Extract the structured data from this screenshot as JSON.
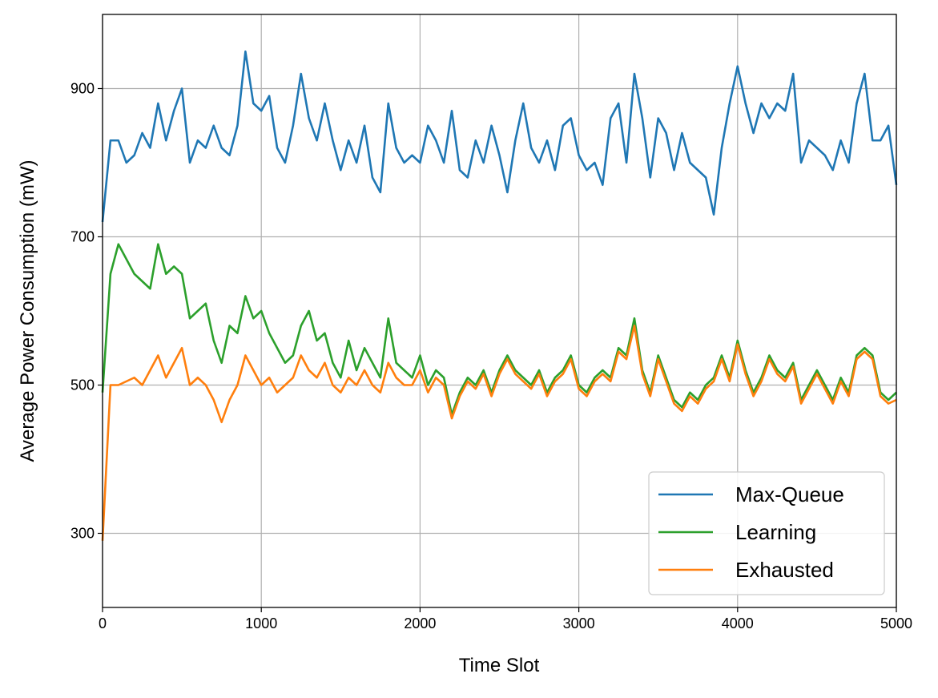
{
  "chart_data": {
    "type": "line",
    "xlabel": "Time Slot",
    "ylabel": "Average Power Consumption (mW)",
    "x": [
      0,
      50,
      100,
      150,
      200,
      250,
      300,
      350,
      400,
      450,
      500,
      550,
      600,
      650,
      700,
      750,
      800,
      850,
      900,
      950,
      1000,
      1050,
      1100,
      1150,
      1200,
      1250,
      1300,
      1350,
      1400,
      1450,
      1500,
      1550,
      1600,
      1650,
      1700,
      1750,
      1800,
      1850,
      1900,
      1950,
      2000,
      2050,
      2100,
      2150,
      2200,
      2250,
      2300,
      2350,
      2400,
      2450,
      2500,
      2550,
      2600,
      2650,
      2700,
      2750,
      2800,
      2850,
      2900,
      2950,
      3000,
      3050,
      3100,
      3150,
      3200,
      3250,
      3300,
      3350,
      3400,
      3450,
      3500,
      3550,
      3600,
      3650,
      3700,
      3750,
      3800,
      3850,
      3900,
      3950,
      4000,
      4050,
      4100,
      4150,
      4200,
      4250,
      4300,
      4350,
      4400,
      4450,
      4500,
      4550,
      4600,
      4650,
      4700,
      4750,
      4800,
      4850,
      4900,
      4950,
      5000
    ],
    "series": [
      {
        "name": "Max-Queue",
        "color": "#1f77b4",
        "values": [
          720,
          830,
          830,
          800,
          810,
          840,
          820,
          880,
          830,
          870,
          900,
          800,
          830,
          820,
          850,
          820,
          810,
          850,
          950,
          880,
          870,
          890,
          820,
          800,
          850,
          920,
          860,
          830,
          880,
          830,
          790,
          830,
          800,
          850,
          780,
          760,
          880,
          820,
          800,
          810,
          800,
          850,
          830,
          800,
          870,
          790,
          780,
          830,
          800,
          850,
          810,
          760,
          830,
          880,
          820,
          800,
          830,
          790,
          850,
          860,
          810,
          790,
          800,
          770,
          860,
          880,
          800,
          920,
          860,
          780,
          860,
          840,
          790,
          840,
          800,
          790,
          780,
          730,
          820,
          880,
          930,
          880,
          840,
          880,
          860,
          880,
          870,
          920,
          800,
          830,
          820,
          810,
          790,
          830,
          800,
          880,
          920,
          830,
          830,
          850,
          770
        ]
      },
      {
        "name": "Learning",
        "color": "#2ca02c",
        "values": [
          490,
          650,
          690,
          670,
          650,
          640,
          630,
          690,
          650,
          660,
          650,
          590,
          600,
          610,
          560,
          530,
          580,
          570,
          620,
          590,
          600,
          570,
          550,
          530,
          540,
          580,
          600,
          560,
          570,
          530,
          510,
          560,
          520,
          550,
          530,
          510,
          590,
          530,
          520,
          510,
          540,
          500,
          520,
          510,
          460,
          490,
          510,
          500,
          520,
          490,
          520,
          540,
          520,
          510,
          500,
          520,
          490,
          510,
          520,
          540,
          500,
          490,
          510,
          520,
          510,
          550,
          540,
          590,
          520,
          490,
          540,
          510,
          480,
          470,
          490,
          480,
          500,
          510,
          540,
          510,
          560,
          520,
          490,
          510,
          540,
          520,
          510,
          530,
          480,
          500,
          520,
          500,
          480,
          510,
          490,
          540,
          550,
          540,
          490,
          480,
          490
        ]
      },
      {
        "name": "Exhausted",
        "color": "#ff7f0e",
        "values": [
          290,
          500,
          500,
          505,
          510,
          500,
          520,
          540,
          510,
          530,
          550,
          500,
          510,
          500,
          480,
          450,
          480,
          500,
          540,
          520,
          500,
          510,
          490,
          500,
          510,
          540,
          520,
          510,
          530,
          500,
          490,
          510,
          500,
          520,
          500,
          490,
          530,
          510,
          500,
          500,
          520,
          490,
          510,
          500,
          455,
          485,
          505,
          495,
          515,
          485,
          515,
          535,
          515,
          505,
          495,
          515,
          485,
          505,
          515,
          535,
          495,
          485,
          505,
          515,
          505,
          545,
          535,
          580,
          515,
          485,
          535,
          505,
          475,
          465,
          485,
          475,
          495,
          505,
          535,
          505,
          555,
          515,
          485,
          505,
          535,
          515,
          505,
          525,
          475,
          495,
          515,
          495,
          475,
          505,
          485,
          535,
          545,
          535,
          485,
          475,
          480
        ]
      }
    ],
    "xlim": [
      0,
      5000
    ],
    "xticks": [
      0,
      1000,
      2000,
      3000,
      4000,
      5000
    ],
    "ylim": [
      200,
      1000
    ],
    "yticks": [
      300,
      500,
      700,
      900
    ],
    "grid": true,
    "legend": "lower right"
  }
}
